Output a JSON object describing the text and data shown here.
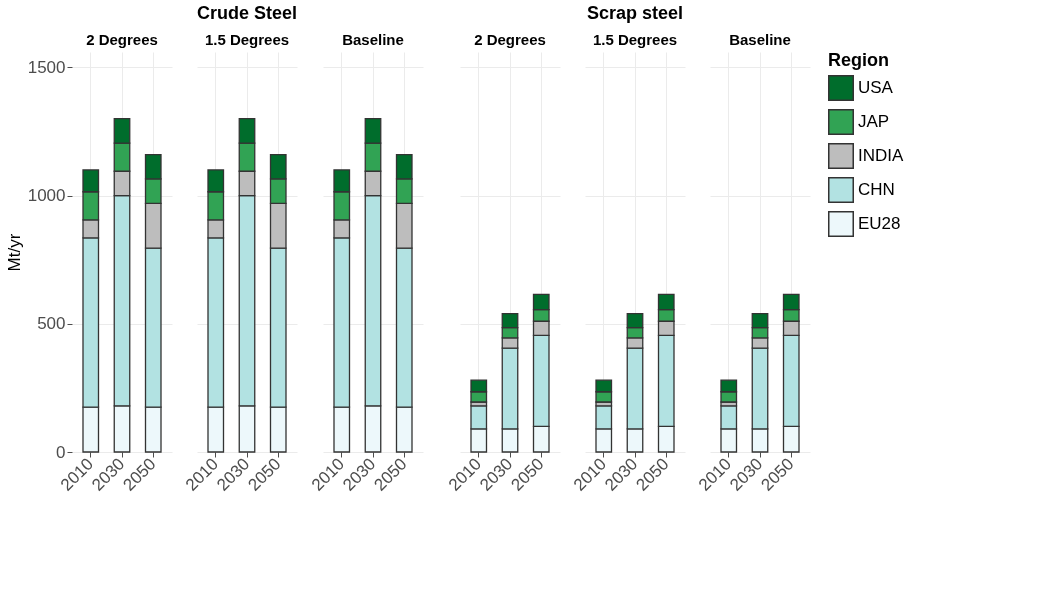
{
  "chart_data": [
    {
      "type": "bar",
      "subtitle": "2 Degrees",
      "ylabel": "Mt/yr",
      "legend": "right",
      "legend_title": "Region",
      "categories": [
        "2010",
        "2030",
        "2050"
      ],
      "stacked": true,
      "ylim": [
        0,
        1560
      ],
      "yticks": [
        0,
        500,
        1000,
        1500
      ],
      "grid": true,
      "tick_labels": "x|y",
      "series": [
        {
          "name": "EU28",
          "color": "#edf8fb",
          "values": [
            175,
            180,
            175
          ]
        },
        {
          "name": "CHN",
          "color": "#b2e2e2",
          "values": [
            660,
            820,
            620
          ]
        },
        {
          "name": "INDIA",
          "color": "#bdbdbd",
          "values": [
            70,
            95,
            175
          ]
        },
        {
          "name": "JAP",
          "color": "#31a354",
          "values": [
            110,
            110,
            95
          ]
        },
        {
          "name": "USA",
          "color": "#006d2c",
          "values": [
            85,
            95,
            95
          ]
        }
      ]
    },
    {
      "type": "bar",
      "title": "Crude Steel",
      "subtitle": "1.5 Degrees",
      "categories": [
        "2010",
        "2030",
        "2050"
      ],
      "stacked": true,
      "ylim": [
        0,
        1560
      ],
      "yticks": [
        0,
        500,
        1000,
        1500
      ],
      "grid": true,
      "tick_labels": "x",
      "series": [
        {
          "name": "EU28",
          "color": "#edf8fb",
          "values": [
            175,
            180,
            175
          ]
        },
        {
          "name": "CHN",
          "color": "#b2e2e2",
          "values": [
            660,
            820,
            620
          ]
        },
        {
          "name": "INDIA",
          "color": "#bdbdbd",
          "values": [
            70,
            95,
            175
          ]
        },
        {
          "name": "JAP",
          "color": "#31a354",
          "values": [
            110,
            110,
            95
          ]
        },
        {
          "name": "USA",
          "color": "#006d2c",
          "values": [
            85,
            95,
            95
          ]
        }
      ]
    },
    {
      "type": "bar",
      "subtitle": "Baseline",
      "categories": [
        "2010",
        "2030",
        "2050"
      ],
      "stacked": true,
      "ylim": [
        0,
        1560
      ],
      "yticks": [
        0,
        500,
        1000,
        1500
      ],
      "grid": true,
      "tick_labels": "x",
      "series": [
        {
          "name": "EU28",
          "color": "#edf8fb",
          "values": [
            175,
            180,
            175
          ]
        },
        {
          "name": "CHN",
          "color": "#b2e2e2",
          "values": [
            660,
            820,
            620
          ]
        },
        {
          "name": "INDIA",
          "color": "#bdbdbd",
          "values": [
            70,
            95,
            175
          ]
        },
        {
          "name": "JAP",
          "color": "#31a354",
          "values": [
            110,
            110,
            95
          ]
        },
        {
          "name": "USA",
          "color": "#006d2c",
          "values": [
            85,
            95,
            95
          ]
        }
      ]
    },
    {
      "type": "bar",
      "subtitle": "2 Degrees",
      "categories": [
        "2010",
        "2030",
        "2050"
      ],
      "stacked": true,
      "ylim": [
        0,
        1560
      ],
      "yticks": [
        0,
        500,
        1000,
        1500
      ],
      "grid": true,
      "tick_labels": "x",
      "series": [
        {
          "name": "EU28",
          "color": "#edf8fb",
          "values": [
            90,
            90,
            100
          ]
        },
        {
          "name": "CHN",
          "color": "#b2e2e2",
          "values": [
            90,
            315,
            355
          ]
        },
        {
          "name": "INDIA",
          "color": "#bdbdbd",
          "values": [
            15,
            40,
            55
          ]
        },
        {
          "name": "JAP",
          "color": "#31a354",
          "values": [
            40,
            40,
            45
          ]
        },
        {
          "name": "USA",
          "color": "#006d2c",
          "values": [
            45,
            55,
            60
          ]
        }
      ]
    },
    {
      "type": "bar",
      "title": "Scrap steel",
      "subtitle": "1.5 Degrees",
      "categories": [
        "2010",
        "2030",
        "2050"
      ],
      "stacked": true,
      "ylim": [
        0,
        1560
      ],
      "yticks": [
        0,
        500,
        1000,
        1500
      ],
      "grid": true,
      "tick_labels": "x",
      "series": [
        {
          "name": "EU28",
          "color": "#edf8fb",
          "values": [
            90,
            90,
            100
          ]
        },
        {
          "name": "CHN",
          "color": "#b2e2e2",
          "values": [
            90,
            315,
            355
          ]
        },
        {
          "name": "INDIA",
          "color": "#bdbdbd",
          "values": [
            15,
            40,
            55
          ]
        },
        {
          "name": "JAP",
          "color": "#31a354",
          "values": [
            40,
            40,
            45
          ]
        },
        {
          "name": "USA",
          "color": "#006d2c",
          "values": [
            45,
            55,
            60
          ]
        }
      ]
    },
    {
      "type": "bar",
      "subtitle": "Baseline",
      "categories": [
        "2010",
        "2030",
        "2050"
      ],
      "stacked": true,
      "ylim": [
        0,
        1560
      ],
      "yticks": [
        0,
        500,
        1000,
        1500
      ],
      "grid": true,
      "tick_labels": "x",
      "series": [
        {
          "name": "EU28",
          "color": "#edf8fb",
          "values": [
            90,
            90,
            100
          ]
        },
        {
          "name": "CHN",
          "color": "#b2e2e2",
          "values": [
            90,
            315,
            355
          ]
        },
        {
          "name": "INDIA",
          "color": "#bdbdbd",
          "values": [
            15,
            40,
            55
          ]
        },
        {
          "name": "JAP",
          "color": "#31a354",
          "values": [
            40,
            40,
            45
          ]
        },
        {
          "name": "USA",
          "color": "#006d2c",
          "values": [
            45,
            55,
            60
          ]
        }
      ]
    }
  ]
}
